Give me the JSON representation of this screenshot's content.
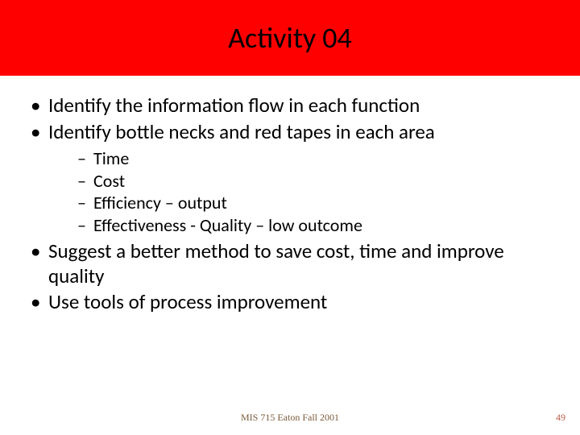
{
  "slide": {
    "title": "Activity 04",
    "title_bar": {
      "background_color": "#ff0000",
      "text_color": "#000000",
      "fontsize": 36
    },
    "bullets": {
      "b1": "Identify the information flow in each function",
      "b2": "Identify bottle necks and red tapes  in each area",
      "b2_sub": {
        "s1": "Time",
        "s2": "Cost",
        "s3": "Efficiency  – output",
        "s4": "Effectiveness - Quality – low outcome"
      },
      "b3": "Suggest a better method to save cost, time and improve quality",
      "b4": "Use tools of process improvement"
    },
    "footer": {
      "text": "MIS 715 Eaton Fall 2001",
      "text_color": "#7b5b3a",
      "page_number": "49",
      "page_number_color": "#b85c4a"
    },
    "background_color": "#ffffff",
    "body_fontsize_lvl1": 25,
    "body_fontsize_lvl2": 22
  }
}
